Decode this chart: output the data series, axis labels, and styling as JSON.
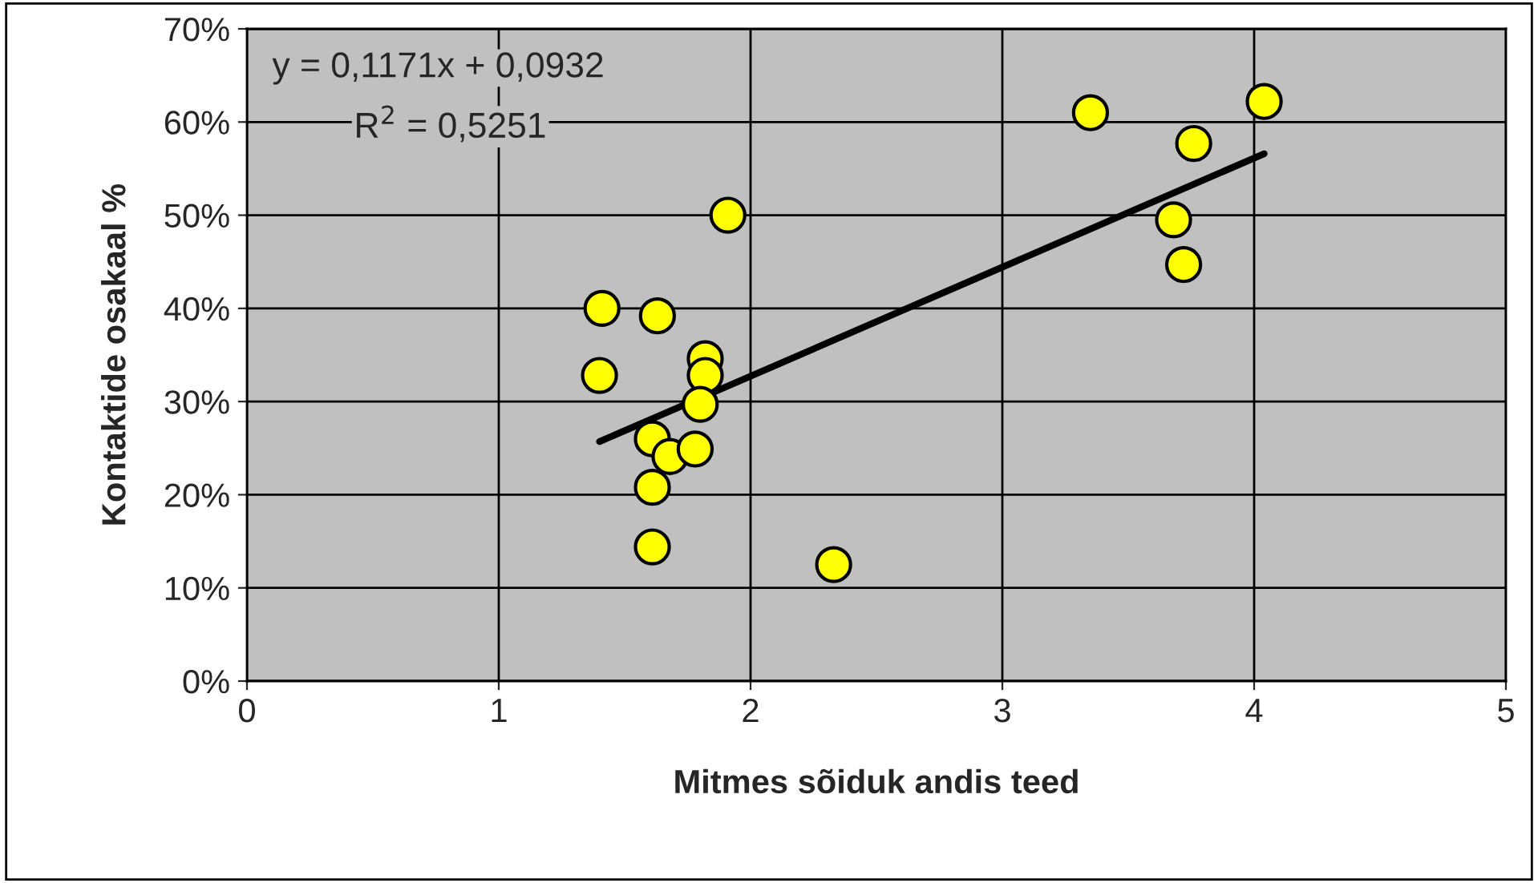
{
  "chart_data": {
    "type": "scatter",
    "xlabel": "Mitmes sõiduk andis teed",
    "ylabel": "Kontaktide osakaal %",
    "annotations": [
      "y = 0,1171x + 0,0932",
      "R$^{2}$ = 0,5251"
    ],
    "series": [
      {
        "color": "#ffff00",
        "marker": "circle",
        "x": [
          1.91,
          1.41,
          1.63,
          1.82,
          1.82,
          1.4,
          1.8,
          1.61,
          1.68,
          1.78,
          1.61,
          1.61,
          2.33,
          3.35,
          3.76,
          4.04,
          3.68,
          3.72
        ],
        "values": [
          50,
          40,
          39.2,
          34.6,
          32.8,
          32.8,
          29.7,
          26,
          24.1,
          24.9,
          20.8,
          14.4,
          12.5,
          61,
          57.7,
          62.2,
          49.5,
          44.7
        ]
      },
      {
        "type": "line",
        "color": "#000000",
        "marker": "none",
        "line_style": "solid",
        "x": [
          1.4,
          4.04
        ],
        "values": [
          25.7,
          56.6
        ]
      }
    ],
    "xlim": [
      0,
      5
    ],
    "xticks": [
      0,
      1,
      2,
      3,
      4,
      5
    ],
    "ylim": [
      0,
      70
    ],
    "yticks": [
      {
        "value": 0,
        "label": "0%"
      },
      {
        "value": 10,
        "label": "10%"
      },
      {
        "value": 20,
        "label": "20%"
      },
      {
        "value": 30,
        "label": "30%"
      },
      {
        "value": 40,
        "label": "40%"
      },
      {
        "value": 50,
        "label": "50%"
      },
      {
        "value": 60,
        "label": "60%"
      },
      {
        "value": 70,
        "label": "70%"
      }
    ],
    "grid": true,
    "legend": false
  }
}
